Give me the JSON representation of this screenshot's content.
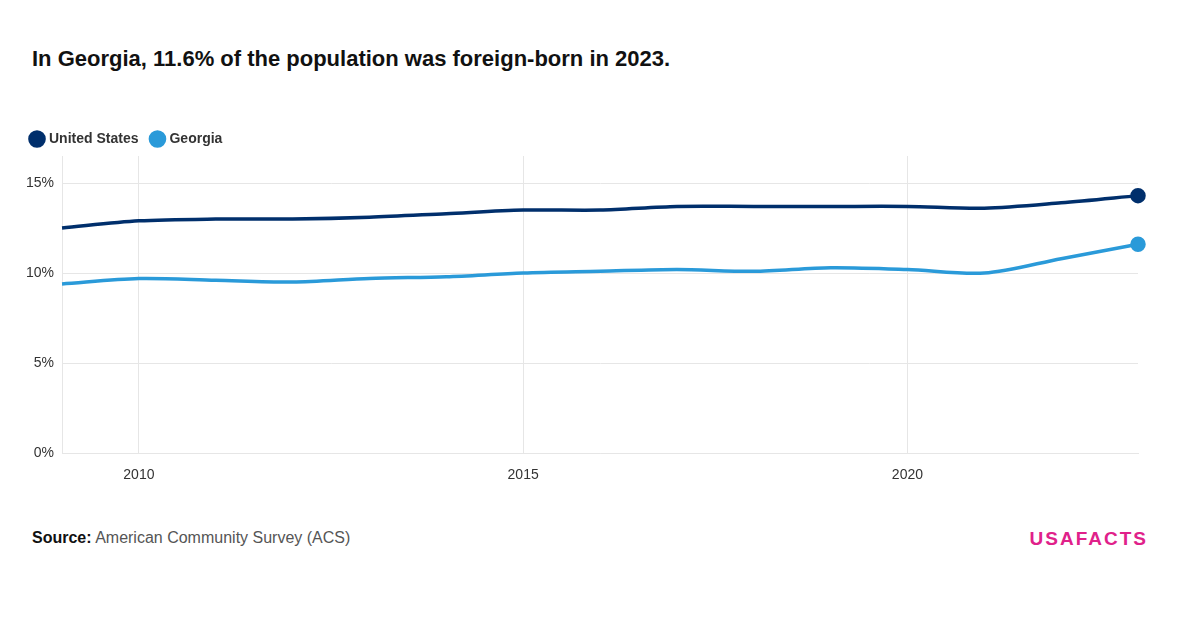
{
  "chart_data": {
    "type": "line",
    "title": "In Georgia, 11.6% of the population was foreign-born in 2023.",
    "source_label": "Source:",
    "source": "American Community Survey (ACS)",
    "logo": "USAFACTS",
    "x": [
      2009,
      2010,
      2011,
      2012,
      2013,
      2014,
      2015,
      2016,
      2017,
      2018,
      2019,
      2020,
      2021,
      2022,
      2023
    ],
    "series": [
      {
        "name": "United States",
        "color": "#002f6c",
        "marker": "last",
        "values": [
          12.5,
          12.9,
          13.0,
          13.0,
          13.1,
          13.3,
          13.5,
          13.5,
          13.7,
          13.7,
          13.7,
          13.7,
          13.6,
          13.9,
          14.3
        ]
      },
      {
        "name": "Georgia",
        "color": "#2a9ad9",
        "marker": "last",
        "values": [
          9.4,
          9.7,
          9.6,
          9.5,
          9.7,
          9.8,
          10.0,
          10.1,
          10.2,
          10.1,
          10.3,
          10.2,
          10.0,
          10.8,
          11.6
        ]
      }
    ],
    "xlim": [
      2009,
      2023
    ],
    "xticks": [
      2010,
      2015,
      2020
    ],
    "ylim": [
      0,
      16.5
    ],
    "yticks": [
      {
        "value": 0,
        "label": "0%"
      },
      {
        "value": 5,
        "label": "5%"
      },
      {
        "value": 10,
        "label": "10%"
      },
      {
        "value": 15,
        "label": "15%"
      }
    ],
    "grid": true,
    "legend": "top-left"
  }
}
